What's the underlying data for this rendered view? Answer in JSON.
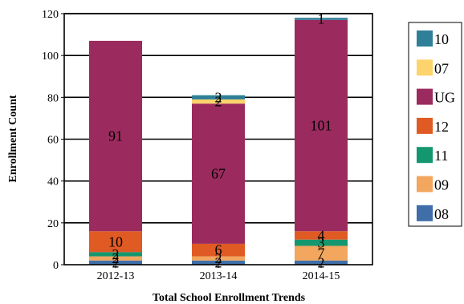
{
  "chart_data": {
    "type": "bar",
    "stacked": true,
    "categories": [
      "2012-13",
      "2013-14",
      "2014-15"
    ],
    "xlabel": "Total School Enrollment Trends",
    "ylabel": "Enrollment Count",
    "ylim": [
      0,
      120
    ],
    "yticks": [
      0,
      20,
      40,
      60,
      80,
      100,
      120
    ],
    "grid": "horizontal",
    "legend": "right",
    "series": [
      {
        "name": "08",
        "color": "#3f6ea8",
        "values": [
          2,
          2,
          2
        ]
      },
      {
        "name": "09",
        "color": "#f2a65e",
        "values": [
          2,
          2,
          7
        ]
      },
      {
        "name": "11",
        "color": "#14976e",
        "values": [
          2,
          0,
          3
        ]
      },
      {
        "name": "12",
        "color": "#e05a24",
        "values": [
          10,
          6,
          4
        ]
      },
      {
        "name": "UG",
        "color": "#9b2b5e",
        "values": [
          91,
          67,
          101
        ]
      },
      {
        "name": "07",
        "color": "#fcd46b",
        "values": [
          0,
          2,
          0
        ]
      },
      {
        "name": "10",
        "color": "#2f7f98",
        "values": [
          0,
          2,
          1
        ]
      }
    ],
    "data_labels": [
      {
        "category": "2012-13",
        "series": "08",
        "text": "2"
      },
      {
        "category": "2012-13",
        "series": "09",
        "text": "2"
      },
      {
        "category": "2012-13",
        "series": "11",
        "text": "2"
      },
      {
        "category": "2012-13",
        "series": "12",
        "text": "10"
      },
      {
        "category": "2012-13",
        "series": "UG",
        "text": "91"
      },
      {
        "category": "2013-14",
        "series": "08",
        "text": "2"
      },
      {
        "category": "2013-14",
        "series": "09",
        "text": "2"
      },
      {
        "category": "2013-14",
        "series": "12",
        "text": "6"
      },
      {
        "category": "2013-14",
        "series": "UG",
        "text": "67"
      },
      {
        "category": "2013-14",
        "series": "07",
        "text": "2"
      },
      {
        "category": "2013-14",
        "series": "10",
        "text": "2"
      },
      {
        "category": "2014-15",
        "series": "08",
        "text": "2"
      },
      {
        "category": "2014-15",
        "series": "09",
        "text": "7"
      },
      {
        "category": "2014-15",
        "series": "11",
        "text": "3"
      },
      {
        "category": "2014-15",
        "series": "12",
        "text": "4"
      },
      {
        "category": "2014-15",
        "series": "UG",
        "text": "101"
      },
      {
        "category": "2014-15",
        "series": "10",
        "text": "1"
      }
    ],
    "legend_order": [
      "10",
      "07",
      "UG",
      "12",
      "11",
      "09",
      "08"
    ]
  }
}
